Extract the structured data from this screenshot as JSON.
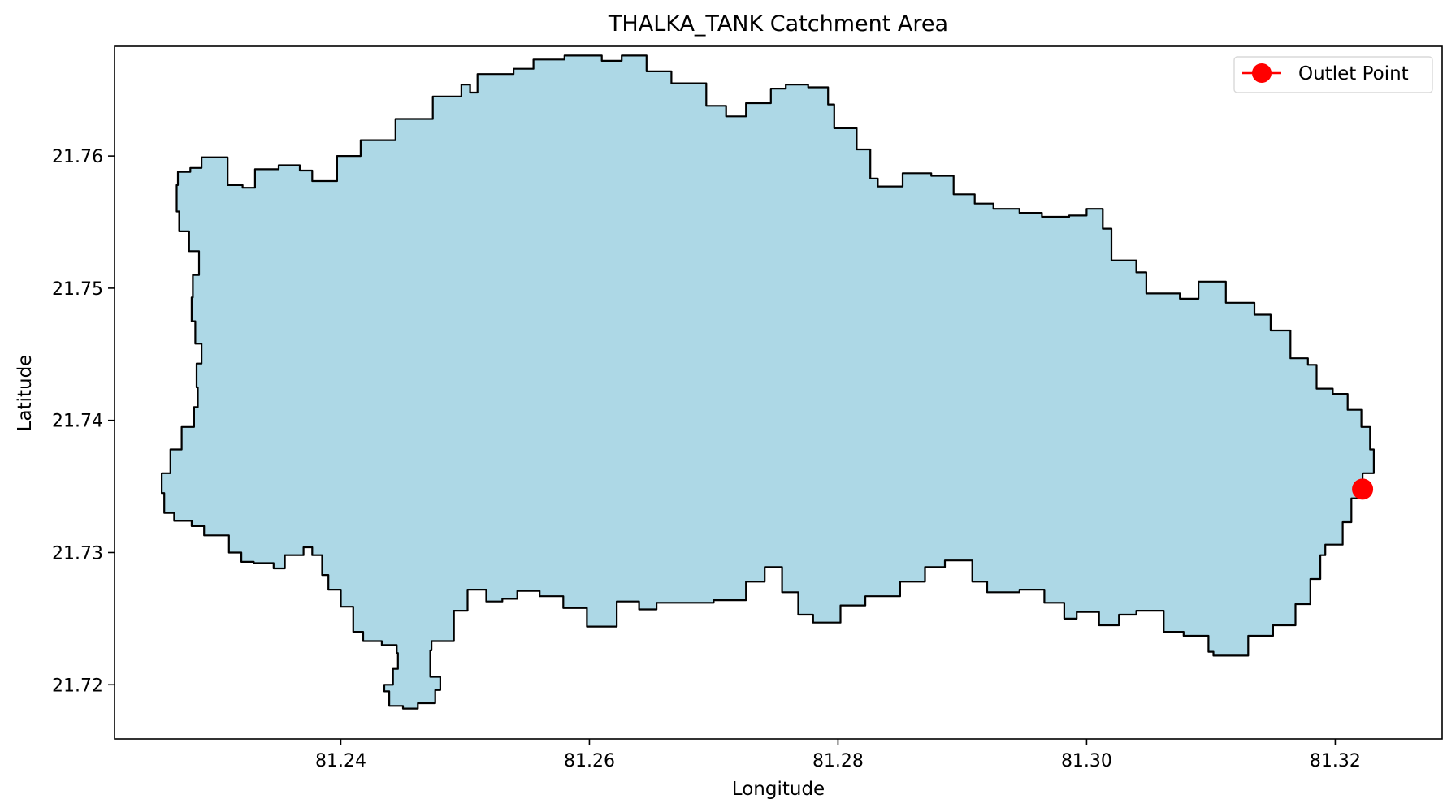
{
  "chart_data": {
    "type": "map",
    "title": "THALKA_TANK Catchment Area",
    "xlabel": "Longitude",
    "ylabel": "Latitude",
    "xlim": [
      81.2218,
      81.3286
    ],
    "ylim": [
      21.7159,
      21.7683
    ],
    "xticks": [
      81.24,
      81.26,
      81.28,
      81.3,
      81.32
    ],
    "xtick_labels": [
      "81.24",
      "81.26",
      "81.28",
      "81.30",
      "81.32"
    ],
    "yticks": [
      21.72,
      21.73,
      21.74,
      21.75,
      21.76
    ],
    "ytick_labels": [
      "21.72",
      "21.73",
      "21.74",
      "21.75",
      "21.76"
    ],
    "grid": false,
    "legend": {
      "position": "top-right",
      "entries": [
        {
          "label": "Outlet Point",
          "color": "#ff0000"
        }
      ]
    },
    "catchment": {
      "fill": "#add8e6",
      "edge": "#000000",
      "boundary": [
        [
          81.2268,
          21.7578
        ],
        [
          81.2269,
          21.7588
        ],
        [
          81.2279,
          21.7591
        ],
        [
          81.2288,
          21.7599
        ],
        [
          81.2308,
          21.7599
        ],
        [
          81.2309,
          21.7578
        ],
        [
          81.2321,
          21.7576
        ],
        [
          81.2331,
          21.759
        ],
        [
          81.235,
          21.7593
        ],
        [
          81.2367,
          21.7589
        ],
        [
          81.2377,
          21.7581
        ],
        [
          81.2387,
          21.7581
        ],
        [
          81.2397,
          21.76
        ],
        [
          81.2416,
          21.7612
        ],
        [
          81.2444,
          21.7628
        ],
        [
          81.2474,
          21.7645
        ],
        [
          81.2497,
          21.7654
        ],
        [
          81.2504,
          21.7648
        ],
        [
          81.251,
          21.7662
        ],
        [
          81.2539,
          21.7666
        ],
        [
          81.2555,
          21.7673
        ],
        [
          81.258,
          21.7676
        ],
        [
          81.261,
          21.7672
        ],
        [
          81.2626,
          21.7676
        ],
        [
          81.2646,
          21.7664
        ],
        [
          81.2666,
          21.7655
        ],
        [
          81.2694,
          21.7638
        ],
        [
          81.271,
          21.763
        ],
        [
          81.2726,
          21.764
        ],
        [
          81.2746,
          21.7651
        ],
        [
          81.2758,
          21.7654
        ],
        [
          81.2776,
          21.7652
        ],
        [
          81.2792,
          21.7639
        ],
        [
          81.2797,
          21.7621
        ],
        [
          81.2815,
          21.7605
        ],
        [
          81.2826,
          21.7583
        ],
        [
          81.2832,
          21.7577
        ],
        [
          81.2852,
          21.7587
        ],
        [
          81.2875,
          21.7585
        ],
        [
          81.2893,
          21.7571
        ],
        [
          81.291,
          21.7564
        ],
        [
          81.2925,
          21.756
        ],
        [
          81.2946,
          21.7557
        ],
        [
          81.2964,
          21.7554
        ],
        [
          81.2986,
          21.7555
        ],
        [
          81.3,
          21.756
        ],
        [
          81.3013,
          21.7545
        ],
        [
          81.302,
          21.7521
        ],
        [
          81.304,
          21.7512
        ],
        [
          81.3048,
          21.7496
        ],
        [
          81.3075,
          21.7492
        ],
        [
          81.309,
          21.7505
        ],
        [
          81.3112,
          21.7489
        ],
        [
          81.3135,
          21.748
        ],
        [
          81.3148,
          21.7468
        ],
        [
          81.3164,
          21.7447
        ],
        [
          81.3178,
          21.7442
        ],
        [
          81.3185,
          21.7424
        ],
        [
          81.3198,
          21.742
        ],
        [
          81.321,
          21.7408
        ],
        [
          81.3221,
          21.7395
        ],
        [
          81.3228,
          21.7378
        ],
        [
          81.3231,
          21.736
        ],
        [
          81.3222,
          21.7341
        ],
        [
          81.3213,
          21.7323
        ],
        [
          81.3206,
          21.7306
        ],
        [
          81.3192,
          21.7298
        ],
        [
          81.3188,
          21.728
        ],
        [
          81.318,
          21.7261
        ],
        [
          81.3168,
          21.7245
        ],
        [
          81.315,
          21.7237
        ],
        [
          81.313,
          21.7222
        ],
        [
          81.3102,
          21.7225
        ],
        [
          81.3098,
          21.7237
        ],
        [
          81.3078,
          21.724
        ],
        [
          81.3062,
          21.7256
        ],
        [
          81.304,
          21.7253
        ],
        [
          81.3026,
          21.7245
        ],
        [
          81.301,
          21.7255
        ],
        [
          81.2992,
          21.725
        ],
        [
          81.2982,
          21.7262
        ],
        [
          81.2966,
          21.7272
        ],
        [
          81.2946,
          21.727
        ],
        [
          81.292,
          21.7278
        ],
        [
          81.2908,
          21.7294
        ],
        [
          81.2886,
          21.7289
        ],
        [
          81.287,
          21.7278
        ],
        [
          81.285,
          21.7267
        ],
        [
          81.2822,
          21.726
        ],
        [
          81.2802,
          21.7247
        ],
        [
          81.278,
          21.7253
        ],
        [
          81.2768,
          21.727
        ],
        [
          81.2755,
          21.7289
        ],
        [
          81.2741,
          21.7278
        ],
        [
          81.2726,
          21.7264
        ],
        [
          81.27,
          21.7262
        ],
        [
          81.2676,
          21.7262
        ],
        [
          81.2654,
          21.7257
        ],
        [
          81.264,
          21.7263
        ],
        [
          81.2622,
          21.7244
        ],
        [
          81.2606,
          21.7244
        ],
        [
          81.2598,
          21.7258
        ],
        [
          81.2579,
          21.7267
        ],
        [
          81.256,
          21.7271
        ],
        [
          81.2542,
          21.7265
        ],
        [
          81.253,
          21.7263
        ],
        [
          81.2517,
          21.7272
        ],
        [
          81.2502,
          21.7256
        ],
        [
          81.2491,
          21.7233
        ],
        [
          81.2473,
          21.7226
        ],
        [
          81.2472,
          21.7206
        ],
        [
          81.248,
          21.7196
        ],
        [
          81.2476,
          21.7186
        ],
        [
          81.2462,
          21.7182
        ],
        [
          81.245,
          21.7184
        ],
        [
          81.2439,
          21.7195
        ],
        [
          81.2435,
          21.72
        ],
        [
          81.2442,
          21.7212
        ],
        [
          81.2446,
          21.7224
        ],
        [
          81.2445,
          21.723
        ],
        [
          81.2433,
          21.7233
        ],
        [
          81.2418,
          21.724
        ],
        [
          81.241,
          21.7259
        ],
        [
          81.24,
          21.7272
        ],
        [
          81.239,
          21.7283
        ],
        [
          81.2385,
          21.7298
        ],
        [
          81.2377,
          21.7304
        ],
        [
          81.237,
          21.7298
        ],
        [
          81.2355,
          21.7288
        ],
        [
          81.2346,
          21.7292
        ],
        [
          81.233,
          21.7293
        ],
        [
          81.232,
          21.73
        ],
        [
          81.231,
          21.7313
        ],
        [
          81.229,
          21.732
        ],
        [
          81.228,
          21.7324
        ],
        [
          81.2266,
          21.733
        ],
        [
          81.2258,
          21.7345
        ],
        [
          81.2256,
          21.736
        ],
        [
          81.2263,
          21.7378
        ],
        [
          81.2272,
          21.7395
        ],
        [
          81.2282,
          21.741
        ],
        [
          81.2285,
          21.7425
        ],
        [
          81.2284,
          21.7443
        ],
        [
          81.2288,
          21.7458
        ],
        [
          81.2283,
          21.7475
        ],
        [
          81.228,
          21.7493
        ],
        [
          81.2281,
          21.751
        ],
        [
          81.2286,
          21.7528
        ],
        [
          81.2278,
          21.7543
        ],
        [
          81.227,
          21.7558
        ],
        [
          81.2268,
          21.7578
        ]
      ]
    },
    "outlet_point": {
      "x": 81.3222,
      "y": 21.7348,
      "color": "#ff0000"
    }
  }
}
